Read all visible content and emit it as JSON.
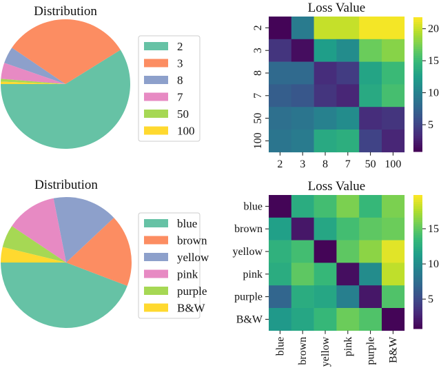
{
  "chart_data": [
    {
      "type": "pie",
      "title": "Distribution",
      "labels": [
        "2",
        "3",
        "8",
        "7",
        "50",
        "100"
      ],
      "values": [
        58.9,
        31.7,
        4.2,
        4.0,
        0.7,
        0.6
      ],
      "colors": [
        "#66c2a5",
        "#fc8d62",
        "#8da0cb",
        "#e78ac3",
        "#a6d854",
        "#ffd92f"
      ],
      "startangle": 180,
      "direction": "counterclockwise",
      "legend": "right"
    },
    {
      "type": "heatmap",
      "title": "Loss Value",
      "row_labels": [
        "2",
        "3",
        "8",
        "7",
        "50",
        "100"
      ],
      "col_labels": [
        "2",
        "3",
        "8",
        "7",
        "50",
        "100"
      ],
      "values": [
        [
          1.0,
          9.5,
          20.0,
          20.0,
          21.5,
          21.5
        ],
        [
          4.0,
          1.5,
          12.5,
          11.0,
          17.0,
          18.0
        ],
        [
          8.0,
          8.0,
          3.5,
          4.5,
          13.0,
          15.0
        ],
        [
          7.0,
          6.5,
          4.0,
          3.0,
          13.5,
          15.5
        ],
        [
          8.5,
          9.0,
          10.0,
          11.0,
          3.5,
          4.0
        ],
        [
          9.0,
          9.5,
          13.5,
          14.0,
          5.0,
          3.0
        ]
      ],
      "colormap": "viridis",
      "colorbar_range": [
        0.8,
        21.8
      ],
      "colorbar_ticks": [
        5,
        10,
        15,
        20
      ]
    },
    {
      "type": "pie",
      "title": "Distribution",
      "labels": [
        "blue",
        "brown",
        "yellow",
        "pink",
        "purple",
        "B&W"
      ],
      "values": [
        44.2,
        17.8,
        16.1,
        12.5,
        5.6,
        3.8
      ],
      "colors": [
        "#66c2a5",
        "#fc8d62",
        "#8da0cb",
        "#e78ac3",
        "#a6d854",
        "#ffd92f"
      ],
      "startangle": 180,
      "direction": "counterclockwise",
      "legend": "right"
    },
    {
      "type": "heatmap",
      "title": "Loss Value",
      "row_labels": [
        "blue",
        "brown",
        "yellow",
        "pink",
        "purple",
        "B&W"
      ],
      "col_labels": [
        "blue",
        "brown",
        "yellow",
        "pink",
        "purple",
        "B&W"
      ],
      "values": [
        [
          1.0,
          12.5,
          14.0,
          16.0,
          13.5,
          16.0
        ],
        [
          11.5,
          2.0,
          12.0,
          14.0,
          15.0,
          15.5
        ],
        [
          13.0,
          14.0,
          1.0,
          15.0,
          16.5,
          19.0
        ],
        [
          12.5,
          15.0,
          13.5,
          1.5,
          10.0,
          18.0
        ],
        [
          7.0,
          12.5,
          12.0,
          9.0,
          2.0,
          14.5
        ],
        [
          11.0,
          12.0,
          13.5,
          15.5,
          14.5,
          1.0
        ]
      ],
      "colormap": "viridis",
      "colorbar_range": [
        0.8,
        19.8
      ],
      "colorbar_ticks": [
        5,
        10,
        15
      ]
    }
  ]
}
